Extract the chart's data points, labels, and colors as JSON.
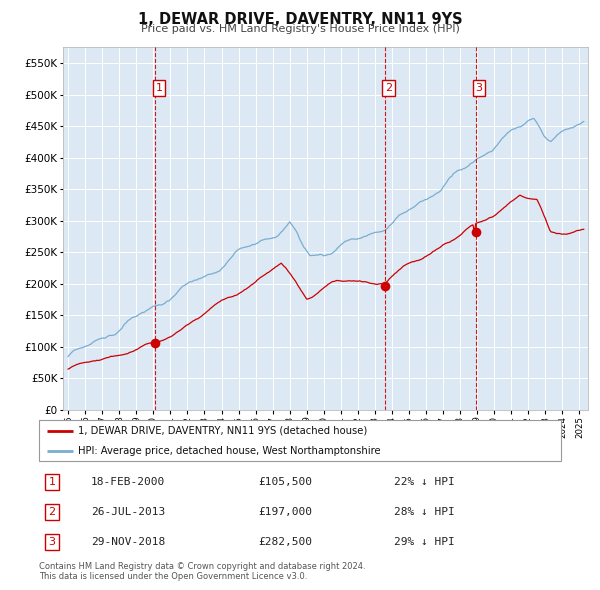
{
  "title": "1, DEWAR DRIVE, DAVENTRY, NN11 9YS",
  "subtitle": "Price paid vs. HM Land Registry's House Price Index (HPI)",
  "legend_red": "1, DEWAR DRIVE, DAVENTRY, NN11 9YS (detached house)",
  "legend_blue": "HPI: Average price, detached house, West Northamptonshire",
  "footer1": "Contains HM Land Registry data © Crown copyright and database right 2024.",
  "footer2": "This data is licensed under the Open Government Licence v3.0.",
  "transactions": [
    {
      "num": 1,
      "date": "18-FEB-2000",
      "price": 105500,
      "pct": "22%",
      "dir": "↓",
      "x_year": 2000.12
    },
    {
      "num": 2,
      "date": "26-JUL-2013",
      "price": 197000,
      "pct": "28%",
      "dir": "↓",
      "x_year": 2013.57
    },
    {
      "num": 3,
      "date": "29-NOV-2018",
      "price": 282500,
      "pct": "29%",
      "dir": "↓",
      "x_year": 2018.91
    }
  ],
  "ylim": [
    0,
    575000
  ],
  "xlim_start": 1994.7,
  "xlim_end": 2025.5,
  "bg_color": "#dce9f5",
  "red_color": "#cc0000",
  "blue_color": "#7aadcf",
  "grid_color": "#ffffff",
  "vline_color": "#cc0000",
  "yticks": [
    0,
    50000,
    100000,
    150000,
    200000,
    250000,
    300000,
    350000,
    400000,
    450000,
    500000,
    550000
  ]
}
